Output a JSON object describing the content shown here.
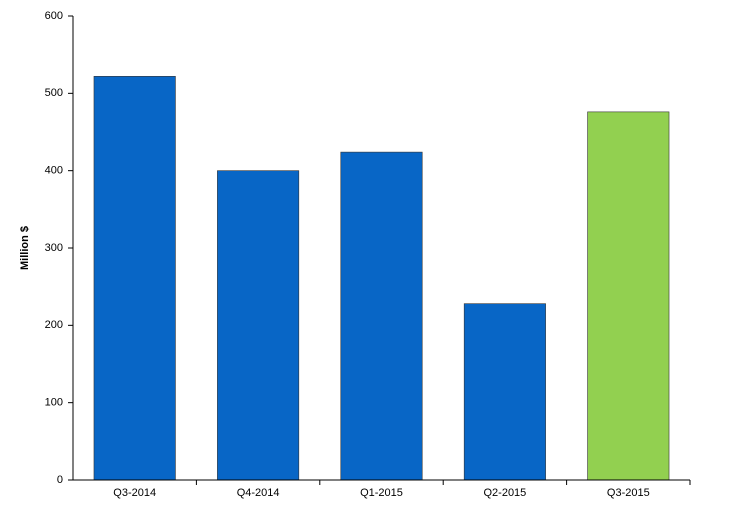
{
  "chart_data": {
    "type": "bar",
    "y_label": "Million $",
    "categories": [
      "Q3-2014",
      "Q4-2014",
      "Q1-2015",
      "Q2-2015",
      "Q3-2015"
    ],
    "values": [
      522,
      400,
      424,
      228,
      476
    ],
    "colors": [
      "#0866c6",
      "#0866c6",
      "#0866c6",
      "#0866c6",
      "#92d050"
    ],
    "ylim": [
      0,
      600
    ],
    "yticks": [
      0,
      100,
      200,
      300,
      400,
      500,
      600
    ],
    "grid": false
  }
}
